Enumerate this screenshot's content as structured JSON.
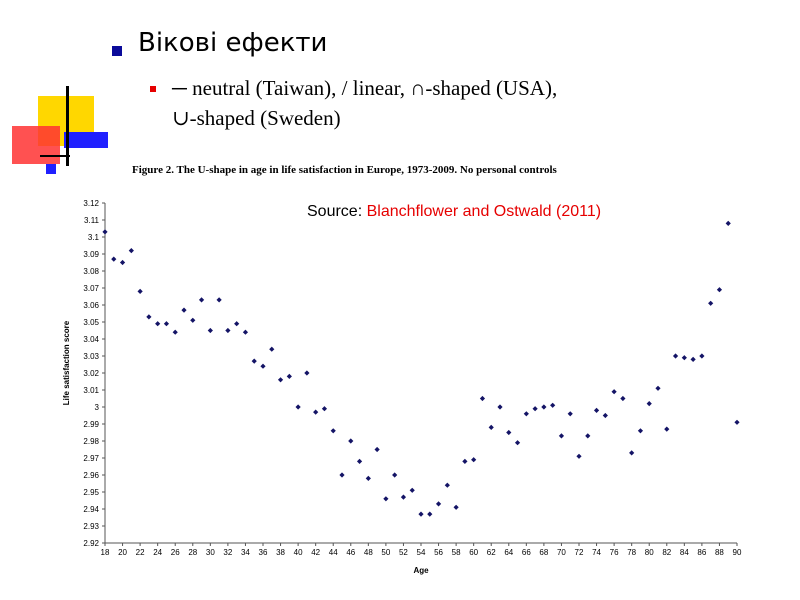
{
  "slide": {
    "title": "Вікові ефекти",
    "subtitle_line1": "─ neutral (Taiwan), / linear, ∩-shaped (USA),",
    "subtitle_line2": "∪-shaped (Sweden)",
    "figure_title": "Figure 2.  The U-shape in age in life satisfaction in Europe, 1973-2009.  No personal controls",
    "source_label": "Source: ",
    "source_ref": "Blanchflower and Ostwald (2011)"
  },
  "colors": {
    "yellow": "#ffd700",
    "red": "#ff3333",
    "blue": "#2020ff",
    "marker": "#141466",
    "bullet_title": "#0b0b9a",
    "bullet_sub": "#e60000"
  },
  "chart_data": {
    "type": "scatter",
    "title": "Figure 2.  The U-shape in age in life satisfaction in Europe, 1973-2009.  No personal controls",
    "xlabel": "Age",
    "ylabel": "Life satisfaction score",
    "xlim": [
      18,
      90
    ],
    "ylim": [
      2.92,
      3.12
    ],
    "x_ticks": [
      18,
      20,
      22,
      24,
      26,
      28,
      30,
      32,
      34,
      36,
      38,
      40,
      42,
      44,
      46,
      48,
      50,
      52,
      54,
      56,
      58,
      60,
      62,
      64,
      66,
      68,
      70,
      72,
      74,
      76,
      78,
      80,
      82,
      84,
      86,
      88,
      90
    ],
    "y_ticks": [
      2.92,
      2.93,
      2.94,
      2.95,
      2.96,
      2.97,
      2.98,
      2.99,
      3,
      3.01,
      3.02,
      3.03,
      3.04,
      3.05,
      3.06,
      3.07,
      3.08,
      3.09,
      3.1,
      3.11,
      3.12
    ],
    "y_tick_labels": [
      "2.92",
      "2.93",
      "2.94",
      "2.95",
      "2.96",
      "2.97",
      "2.98",
      "2.99",
      "3",
      "3.01",
      "3.02",
      "3.03",
      "3.04",
      "3.05",
      "3.06",
      "3.07",
      "3.08",
      "3.09",
      "3.1",
      "3.11",
      "3.12"
    ],
    "grid": false,
    "x": [
      18,
      19,
      20,
      21,
      22,
      23,
      24,
      25,
      26,
      27,
      28,
      29,
      30,
      31,
      32,
      33,
      34,
      35,
      36,
      37,
      38,
      39,
      40,
      41,
      42,
      43,
      44,
      45,
      46,
      47,
      48,
      49,
      50,
      51,
      52,
      53,
      54,
      55,
      56,
      57,
      58,
      59,
      60,
      61,
      62,
      63,
      64,
      65,
      66,
      67,
      68,
      69,
      70,
      71,
      72,
      73,
      74,
      75,
      76,
      77,
      78,
      79,
      80,
      81,
      82,
      83,
      84,
      85,
      86,
      87,
      88,
      89,
      90
    ],
    "y": [
      3.103,
      3.087,
      3.085,
      3.092,
      3.068,
      3.053,
      3.049,
      3.049,
      3.044,
      3.057,
      3.051,
      3.063,
      3.045,
      3.063,
      3.045,
      3.049,
      3.044,
      3.027,
      3.024,
      3.034,
      3.016,
      3.018,
      3.0,
      3.02,
      2.997,
      2.999,
      2.986,
      2.96,
      2.98,
      2.968,
      2.958,
      2.975,
      2.946,
      2.96,
      2.947,
      2.951,
      2.937,
      2.937,
      2.943,
      2.954,
      2.941,
      2.968,
      2.969,
      3.005,
      2.988,
      3.0,
      2.985,
      2.979,
      2.996,
      2.999,
      3.0,
      3.001,
      2.983,
      2.996,
      2.971,
      2.983,
      2.998,
      2.995,
      3.009,
      3.005,
      2.973,
      2.986,
      3.002,
      3.011,
      2.987,
      3.03,
      3.029,
      3.028,
      3.03,
      3.061,
      3.069,
      3.108,
      2.991
    ]
  }
}
